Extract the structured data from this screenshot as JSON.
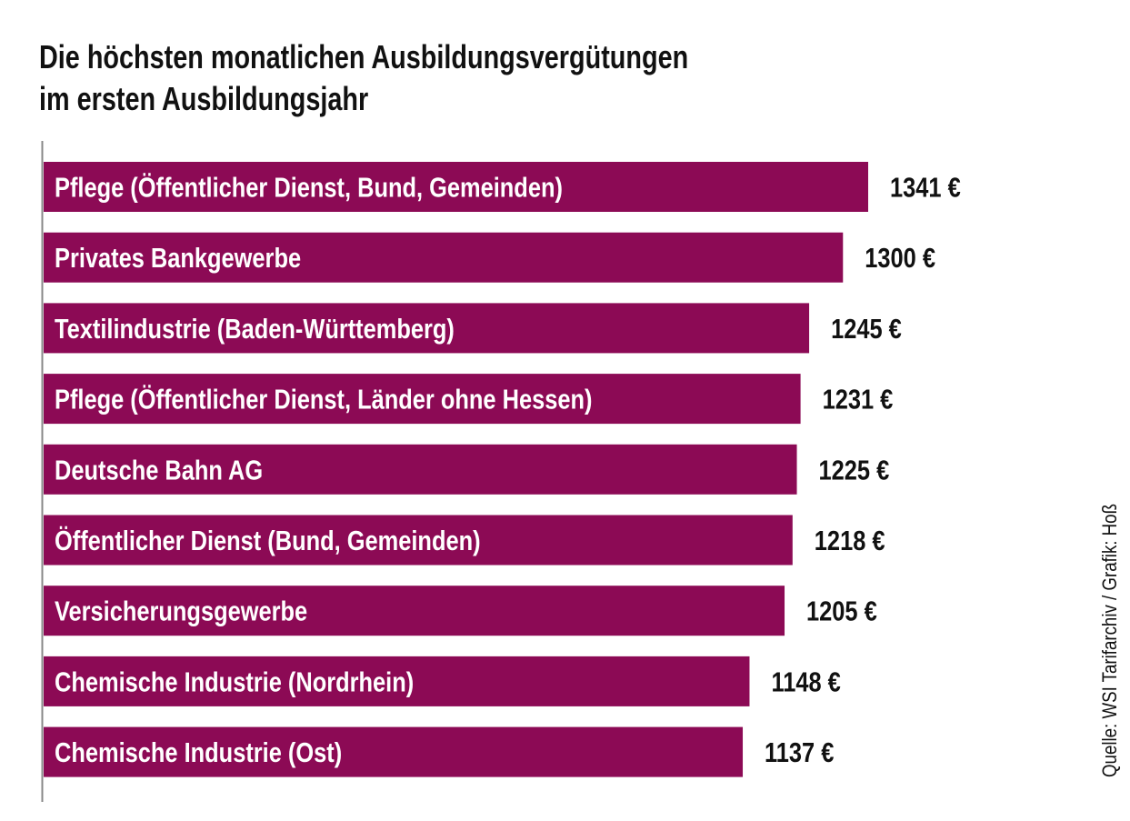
{
  "chart_data": {
    "type": "bar",
    "orientation": "horizontal",
    "title_lines": [
      "Die höchsten monatlichen Ausbildungsvergütungen",
      "im ersten Ausbildungsjahr"
    ],
    "categories": [
      "Pflege (Öffentlicher Dienst, Bund, Gemeinden)",
      "Privates Bankgewerbe",
      "Textilindustrie (Baden-Württemberg)",
      "Pflege (Öffentlicher Dienst, Länder ohne Hessen)",
      "Deutsche Bahn AG",
      "Öffentlicher Dienst (Bund, Gemeinden)",
      "Versicherungsgewerbe",
      "Chemische Industrie (Nordrhein)",
      "Chemische Industrie (Ost)"
    ],
    "values": [
      1341,
      1300,
      1245,
      1231,
      1225,
      1218,
      1205,
      1148,
      1137
    ],
    "value_labels": [
      "1341 €",
      "1300 €",
      "1245 €",
      "1231 €",
      "1225 €",
      "1218 €",
      "1205 €",
      "1148 €",
      "1137 €"
    ],
    "unit": "€",
    "xlim": [
      0,
      1341
    ],
    "grid": false,
    "source": "Quelle: WSI Tarifarchiv / Grafik: Hoß",
    "bar_color": "#8C0A55",
    "label_color": "#ffffff"
  }
}
